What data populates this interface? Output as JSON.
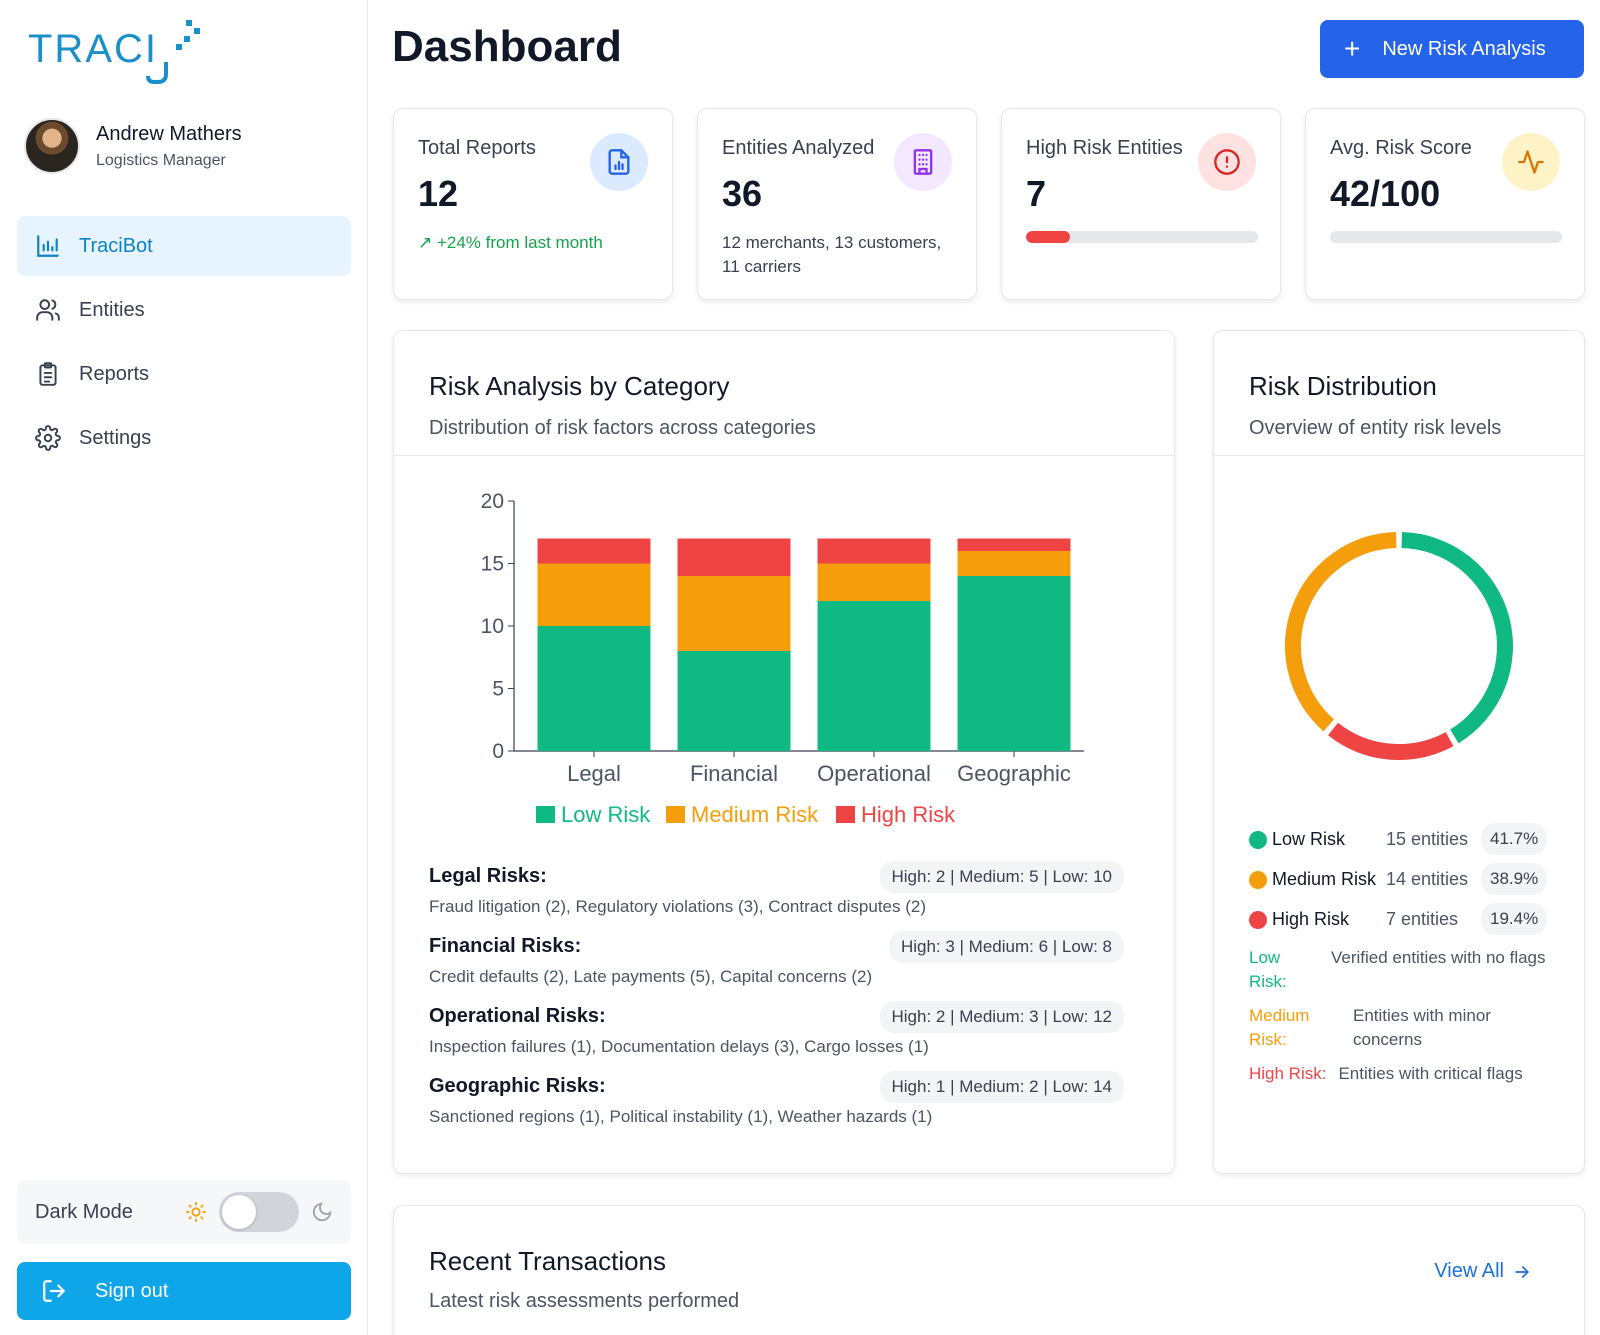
{
  "brand": {
    "logo_text": "TRACI",
    "accent": "#1a8fc9"
  },
  "user": {
    "name": "Andrew Mathers",
    "role": "Logistics Manager"
  },
  "nav": [
    {
      "label": "TraciBot",
      "icon": "bar-chart-icon",
      "active": true
    },
    {
      "label": "Entities",
      "icon": "users-icon",
      "active": false
    },
    {
      "label": "Reports",
      "icon": "clipboard-icon",
      "active": false
    },
    {
      "label": "Settings",
      "icon": "gear-icon",
      "active": false
    }
  ],
  "dark_mode": {
    "label": "Dark Mode",
    "enabled": false
  },
  "sign_out": "Sign out",
  "page": {
    "title": "Dashboard",
    "new_button": "New Risk Analysis"
  },
  "stats": [
    {
      "label": "Total Reports",
      "value": "12",
      "sub": "+24% from last month",
      "icon": "file-chart-icon",
      "color": "#2563eb"
    },
    {
      "label": "Entities Analyzed",
      "value": "36",
      "sub": "12 merchants, 13 customers, 11 carriers",
      "icon": "building-icon",
      "color": "#9333ea"
    },
    {
      "label": "High Risk Entities",
      "value": "7",
      "progress": 0.19,
      "icon": "alert-circle-icon",
      "color": "#dc2626"
    },
    {
      "label": "Avg. Risk Score",
      "value": "42/100",
      "progress": 0,
      "icon": "activity-icon",
      "color": "#d97706"
    }
  ],
  "category_card": {
    "title": "Risk Analysis by Category",
    "subtitle": "Distribution of risk factors across categories",
    "risks": [
      {
        "name": "Legal Risks:",
        "badge": "High: 2 | Medium: 5 | Low: 10",
        "desc": "Fraud litigation (2), Regulatory violations (3), Contract disputes (2)"
      },
      {
        "name": "Financial Risks:",
        "badge": "High: 3 | Medium: 6 | Low: 8",
        "desc": "Credit defaults (2), Late payments (5), Capital concerns (2)"
      },
      {
        "name": "Operational Risks:",
        "badge": "High: 2 | Medium: 3 | Low: 12",
        "desc": "Inspection failures (1), Documentation delays (3), Cargo losses (1)"
      },
      {
        "name": "Geographic Risks:",
        "badge": "High: 1 | Medium: 2 | Low: 14",
        "desc": "Sanctioned regions (1), Political instability (1), Weather hazards (1)"
      }
    ]
  },
  "distribution_card": {
    "title": "Risk Distribution",
    "subtitle": "Overview of entity risk levels",
    "items": [
      {
        "name": "Low Risk",
        "count": "15 entities",
        "pct": "41.7%",
        "color": "#10b981"
      },
      {
        "name": "Medium Risk",
        "count": "14 entities",
        "pct": "38.9%",
        "color": "#f59e0b"
      },
      {
        "name": "High Risk",
        "count": "7 entities",
        "pct": "19.4%",
        "color": "#ef4444"
      }
    ],
    "descriptions": [
      {
        "key": "Low Risk:",
        "text": "Verified entities with no flags",
        "color": "#10b981"
      },
      {
        "key": "Medium Risk:",
        "text": "Entities with minor concerns",
        "color": "#f59e0b"
      },
      {
        "key": "High Risk:",
        "text": "Entities with critical flags",
        "color": "#ef4444"
      }
    ]
  },
  "transactions_card": {
    "title": "Recent Transactions",
    "subtitle": "Latest risk assessments performed",
    "view_all": "View All"
  },
  "chart_data": [
    {
      "type": "bar",
      "stacked": true,
      "categories": [
        "Legal",
        "Financial",
        "Operational",
        "Geographic"
      ],
      "series": [
        {
          "name": "Low Risk",
          "values": [
            10,
            8,
            12,
            14
          ],
          "color": "#10b981"
        },
        {
          "name": "Medium Risk",
          "values": [
            5,
            6,
            3,
            2
          ],
          "color": "#f59e0b"
        },
        {
          "name": "High Risk",
          "values": [
            2,
            3,
            2,
            1
          ],
          "color": "#ef4444"
        }
      ],
      "ylim": [
        0,
        20
      ],
      "yticks": [
        0,
        5,
        10,
        15,
        20
      ],
      "legend": "bottom"
    },
    {
      "type": "pie",
      "donut": true,
      "labels": [
        "Low Risk",
        "High Risk",
        "Medium Risk"
      ],
      "values": [
        15,
        7,
        14
      ],
      "colors": [
        "#10b981",
        "#ef4444",
        "#f59e0b"
      ]
    }
  ]
}
